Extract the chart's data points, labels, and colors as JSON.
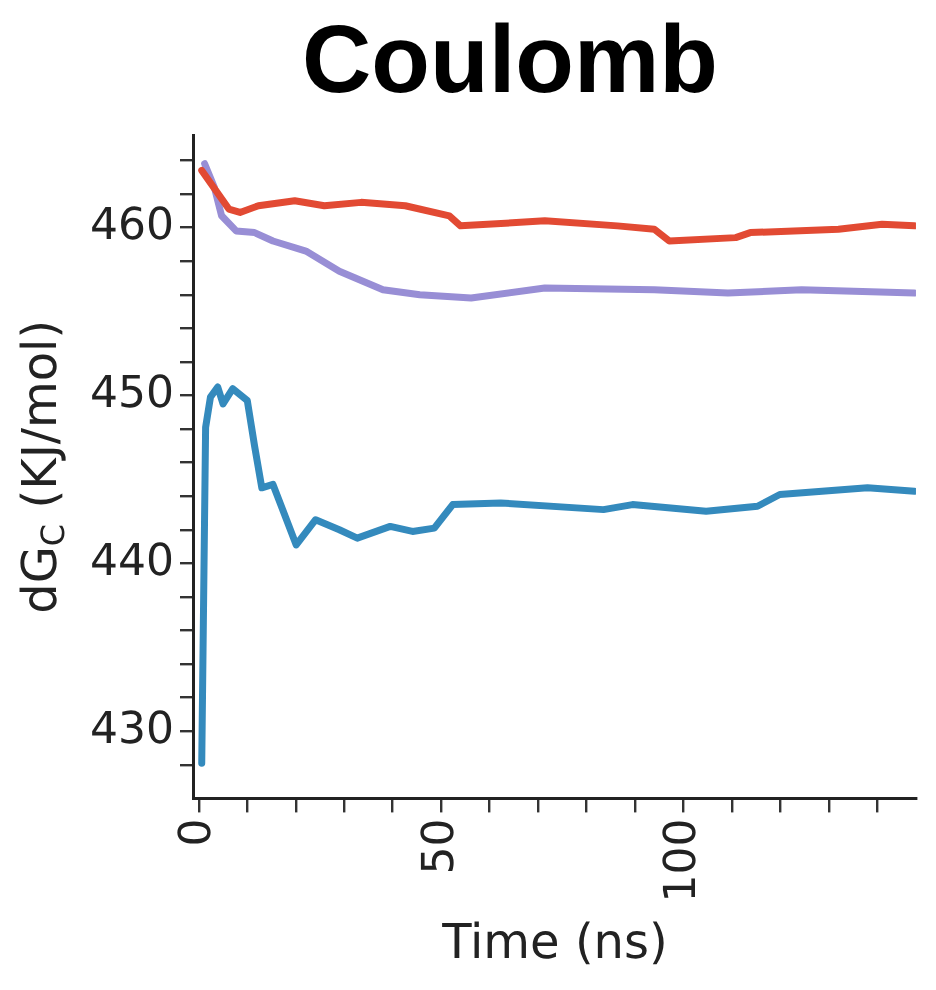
{
  "chart_data": {
    "type": "line",
    "title": "Coulomb",
    "xlabel": "Time (ns)",
    "ylabel": "dG$_{C}$ (KJ/mol)",
    "xlim": [
      -1,
      148
    ],
    "xticks": [
      0,
      {
        "value": 10,
        "label": null
      },
      {
        "value": 20,
        "label": null
      },
      {
        "value": 30,
        "label": null
      },
      {
        "value": 40,
        "label": null
      },
      50,
      {
        "value": 60,
        "label": null
      },
      {
        "value": 70,
        "label": null
      },
      {
        "value": 80,
        "label": null
      },
      {
        "value": 90,
        "label": null
      },
      100,
      {
        "value": 110,
        "label": null
      },
      {
        "value": 120,
        "label": null
      },
      {
        "value": 130,
        "label": null
      },
      {
        "value": 140,
        "label": null
      }
    ],
    "ylim": [
      426,
      465.5
    ],
    "yticks": [
      {
        "value": 428,
        "label": null
      },
      430,
      {
        "value": 432,
        "label": null
      },
      {
        "value": 434,
        "label": null
      },
      {
        "value": 436,
        "label": null
      },
      {
        "value": 438,
        "label": null
      },
      440,
      {
        "value": 442,
        "label": null
      },
      {
        "value": 444,
        "label": null
      },
      {
        "value": 446,
        "label": null
      },
      {
        "value": 448,
        "label": null
      },
      450,
      {
        "value": 452,
        "label": null
      },
      {
        "value": 454,
        "label": null
      },
      {
        "value": 456,
        "label": null
      },
      {
        "value": 458,
        "label": null
      },
      460,
      {
        "value": 462,
        "label": null
      },
      {
        "value": 464,
        "label": null
      }
    ],
    "legend": false,
    "marker": "none",
    "line_style": "solid",
    "series": [
      {
        "color": "#e24a33",
        "x": [
          0.6,
          6.2,
          8.5,
          12.3,
          19.8,
          25.9,
          33.5,
          42.6,
          51.7,
          54,
          71.4,
          86.4,
          94,
          97.1,
          110.8,
          113.8,
          132,
          141,
          147.7
        ],
        "values": [
          463.4,
          461.1,
          460.9,
          461.3,
          461.6,
          461.3,
          461.5,
          461.3,
          460.7,
          460.1,
          460.4,
          460.1,
          459.9,
          459.2,
          459.4,
          459.7,
          459.9,
          460.2,
          460.1
        ]
      },
      {
        "color": "#988ed5",
        "x": [
          1.2,
          3.2,
          4.7,
          7.7,
          11.5,
          15.3,
          22.1,
          29,
          38,
          45.6,
          56.2,
          71.4,
          94,
          109.2,
          124.4,
          147.7
        ],
        "values": [
          463.8,
          462.4,
          460.7,
          459.8,
          459.7,
          459.2,
          458.6,
          457.4,
          456.3,
          456,
          455.8,
          456.4,
          456.3,
          456.1,
          456.3,
          456.1
        ]
      },
      {
        "color": "#348abd",
        "x": [
          0.6,
          1.4,
          2.4,
          3.9,
          5,
          7,
          10,
          11.5,
          13,
          15.3,
          20.1,
          24.1,
          29,
          32.7,
          39.5,
          44.1,
          48.6,
          52.4,
          62.3,
          83.5,
          89.5,
          104.7,
          115.3,
          119.9,
          138,
          147.7
        ],
        "values": [
          428.1,
          448.1,
          449.9,
          450.5,
          449.5,
          450.4,
          449.7,
          447,
          444.5,
          444.7,
          441.1,
          442.6,
          442,
          441.5,
          442.2,
          441.9,
          442.1,
          443.5,
          443.6,
          443.2,
          443.5,
          443.1,
          443.4,
          444.1,
          444.5,
          444.3
        ]
      }
    ]
  }
}
